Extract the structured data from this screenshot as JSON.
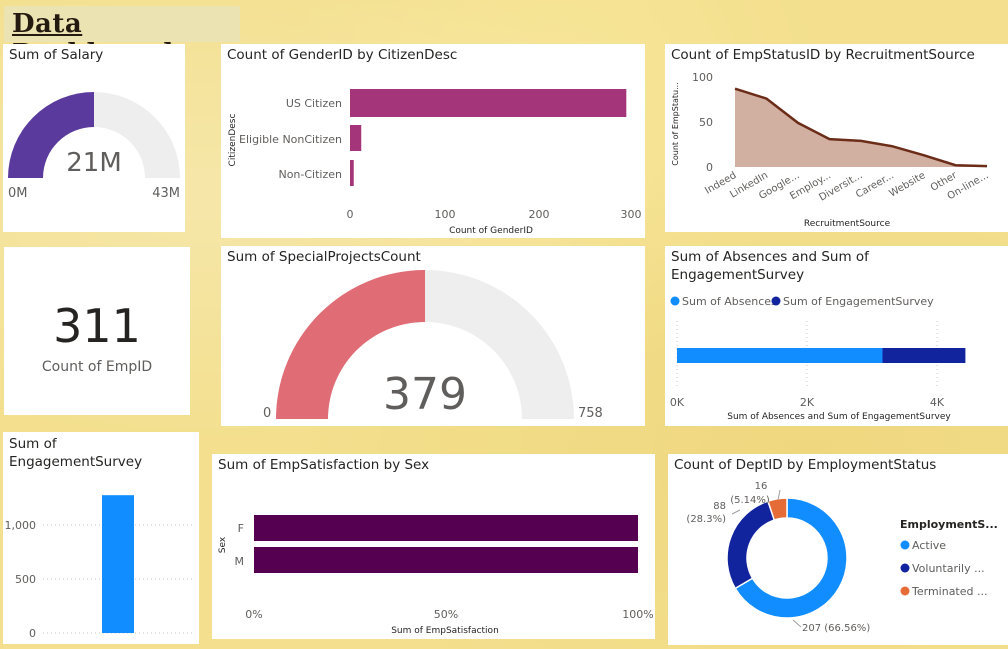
{
  "dashboard": {
    "title": "Data Dashboard"
  },
  "colors": {
    "purple": "#5b3a9e",
    "gauge_bg": "#efeeee",
    "magenta": "#a5357b",
    "brown_area": "#c9a292",
    "brown_line": "#6b2c18",
    "blue": "#118dff",
    "navy": "#12239e",
    "orange": "#e66c37",
    "coral": "#e06c75",
    "plum": "#560052"
  },
  "salary_gauge": {
    "title": "Sum of Salary",
    "value_label": "21M",
    "min_label": "0M",
    "max_label": "43M",
    "value": 21,
    "min": 0,
    "max": 43
  },
  "emp_count_card": {
    "value": "311",
    "label": "Count of EmpID"
  },
  "citizen_chart": {
    "title": "Count of GenderID by CitizenDesc",
    "xlabel": "Count of GenderID",
    "ylabel": "CitizenDesc",
    "x_ticks": [
      "0",
      "100",
      "200",
      "300"
    ]
  },
  "recruit_chart": {
    "title": "Count of EmpStatusID by RecruitmentSource",
    "xlabel": "RecruitmentSource",
    "ylabel": "Count of EmpStatu...",
    "y_ticks": [
      "0",
      "50",
      "100"
    ]
  },
  "special_projects_gauge": {
    "title": "Sum of SpecialProjectsCount",
    "value_label": "379",
    "min_label": "0",
    "max_label": "758",
    "value": 379,
    "min": 0,
    "max": 758
  },
  "absences_chart": {
    "title_line1": "Sum of Absences and Sum of",
    "title_line2": "EngagementSurvey",
    "legend": [
      "Sum of Absences",
      "Sum of EngagementSurvey"
    ],
    "xlabel": "Sum of Absences and Sum of EngagementSurvey",
    "x_ticks": [
      "0K",
      "2K",
      "4K"
    ]
  },
  "engagement_chart": {
    "title_line1": "Sum of",
    "title_line2": "EngagementSurvey",
    "y_ticks": [
      "0",
      "500",
      "1,000"
    ]
  },
  "satisfaction_chart": {
    "title": "Sum of EmpSatisfaction by Sex",
    "xlabel": "Sum of EmpSatisfaction",
    "ylabel": "Sex",
    "x_ticks": [
      "0%",
      "50%",
      "100%"
    ]
  },
  "dept_chart": {
    "title": "Count of DeptID by EmploymentStatus",
    "legend_title": "EmploymentS...",
    "legend": [
      "Active",
      "Voluntarily ...",
      "Terminated ..."
    ],
    "slice_labels": [
      {
        "count": "207",
        "pct": "(66.56%)"
      },
      {
        "count": "88",
        "pct": "(28.3%)"
      },
      {
        "count": "16",
        "pct": "(5.14%)"
      }
    ]
  },
  "chart_data": [
    {
      "type": "bar",
      "orientation": "horizontal",
      "title": "Count of GenderID by CitizenDesc",
      "categories": [
        "US Citizen",
        "Eligible NonCitizen",
        "Non-Citizen"
      ],
      "values": [
        295,
        12,
        4
      ],
      "xlabel": "Count of GenderID",
      "ylabel": "CitizenDesc",
      "xlim": [
        0,
        310
      ]
    },
    {
      "type": "area",
      "title": "Count of EmpStatusID by RecruitmentSource",
      "categories": [
        "Indeed",
        "LinkedIn",
        "Google...",
        "Employ...",
        "Diversit...",
        "Career...",
        "Website",
        "Other",
        "On-line..."
      ],
      "values": [
        87,
        76,
        49,
        31,
        29,
        23,
        13,
        2,
        1
      ],
      "xlabel": "RecruitmentSource",
      "ylabel": "Count of EmpStatu...",
      "ylim": [
        0,
        100
      ]
    },
    {
      "type": "bar",
      "orientation": "horizontal",
      "stacked": true,
      "title": "Sum of Absences and Sum of EngagementSurvey",
      "series": [
        {
          "name": "Sum of Absences",
          "values": [
            3161
          ]
        },
        {
          "name": "Sum of EngagementSurvey",
          "values": [
            1276
          ]
        }
      ],
      "xlabel": "Sum of Absences and Sum of EngagementSurvey",
      "xlim": [
        0,
        4800
      ]
    },
    {
      "type": "bar",
      "title": "Sum of EngagementSurvey",
      "categories": [
        ""
      ],
      "values": [
        1276
      ],
      "ylim": [
        0,
        1300
      ]
    },
    {
      "type": "bar",
      "orientation": "horizontal",
      "stacked_percent": true,
      "title": "Sum of EmpSatisfaction by Sex",
      "categories": [
        "F",
        "M"
      ],
      "values": [
        100,
        100
      ],
      "xlabel": "Sum of EmpSatisfaction",
      "ylabel": "Sex",
      "xlim": [
        0,
        100
      ]
    },
    {
      "type": "pie",
      "donut": true,
      "title": "Count of DeptID by EmploymentStatus",
      "categories": [
        "Active",
        "Voluntarily ...",
        "Terminated ..."
      ],
      "values": [
        207,
        88,
        16
      ]
    }
  ]
}
